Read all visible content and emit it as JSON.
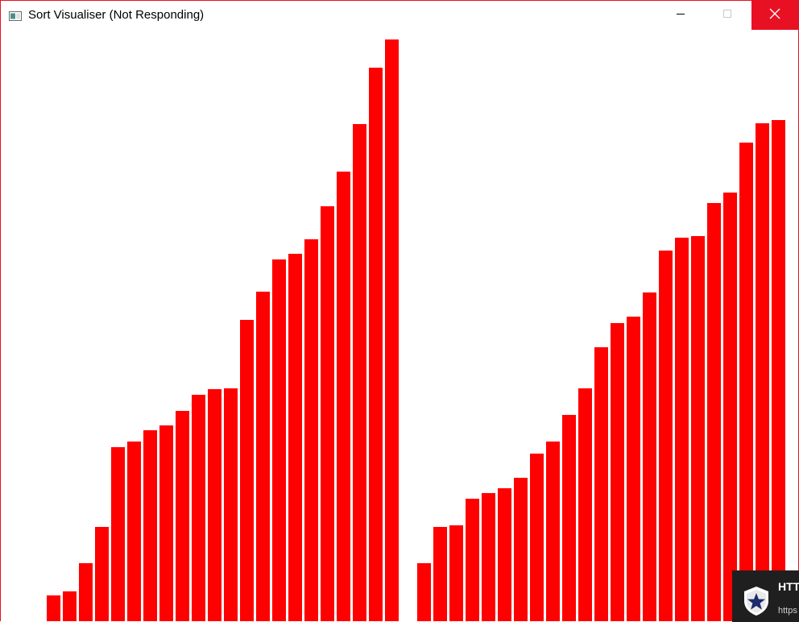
{
  "window": {
    "title": "Sort Visualiser (Not Responding)",
    "app_icon": "window-app-icon",
    "controls": {
      "minimize_icon": "minimize-icon",
      "maximize_icon": "maximize-icon",
      "close_icon": "close-icon"
    },
    "accent_color": "#e81123"
  },
  "visualiser": {
    "bar_color": "#ff0000",
    "left_group": [
      32,
      37,
      72,
      117,
      216,
      223,
      237,
      243,
      261,
      281,
      288,
      289,
      374,
      409,
      449,
      456,
      474,
      515,
      558,
      617,
      687,
      722
    ],
    "right_group": [
      72,
      117,
      119,
      152,
      159,
      165,
      178,
      208,
      223,
      256,
      289,
      340,
      370,
      378,
      408,
      460,
      476,
      478,
      519,
      532,
      594,
      618,
      622
    ]
  },
  "toast": {
    "title": "HTT",
    "url": "https",
    "icon": "shield-star-icon"
  }
}
